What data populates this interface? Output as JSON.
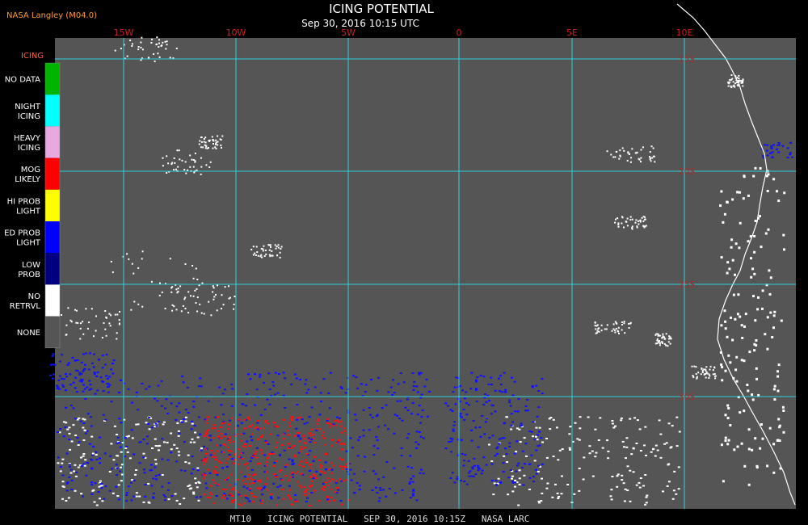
{
  "header": {
    "source": "NASA Langley (M04.0)",
    "title": "ICING POTENTIAL",
    "timestamp": "Sep 30, 2016 10:15 UTC"
  },
  "legend": {
    "title": "ICING",
    "items": [
      {
        "lines": [
          "NO DATA"
        ],
        "color": "#00b400"
      },
      {
        "lines": [
          "NIGHT",
          "ICING"
        ],
        "color": "#00ffff"
      },
      {
        "lines": [
          "HEAVY",
          "ICING"
        ],
        "color": "#e8a8e0"
      },
      {
        "lines": [
          "MOG",
          "LIKELY"
        ],
        "color": "#ff0000"
      },
      {
        "lines": [
          "HI PROB",
          "LIGHT"
        ],
        "color": "#ffff00"
      },
      {
        "lines": [
          "ED PROB",
          "LIGHT"
        ],
        "color": "#0000ff"
      },
      {
        "lines": [
          "LOW",
          "PROB"
        ],
        "color": "#000080"
      },
      {
        "lines": [
          "NO",
          "RETRVL"
        ],
        "color": "#ffffff"
      },
      {
        "lines": [
          "NONE"
        ],
        "color": "#555555"
      }
    ]
  },
  "map": {
    "longitude_labels": [
      "15W",
      "10W",
      "5W",
      "0",
      "5E",
      "10E"
    ],
    "latitude_labels": [
      "15S",
      "20S",
      "25S",
      "30S"
    ]
  },
  "footer": "MT10   ICING POTENTIAL   SEP 30, 2016 10:15Z   NASA LARC"
}
